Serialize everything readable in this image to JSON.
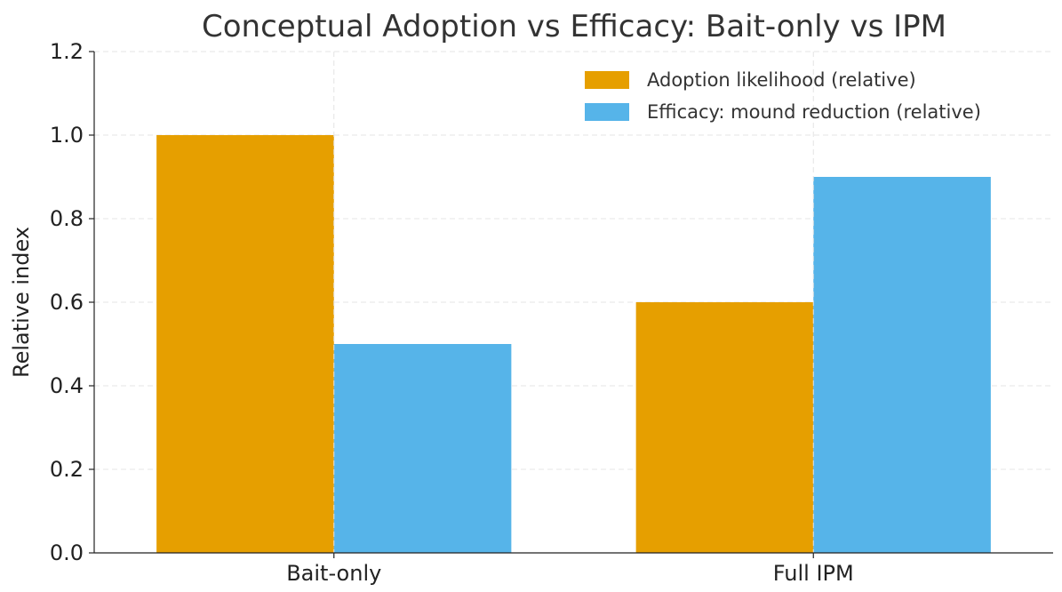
{
  "chart_data": {
    "type": "bar",
    "title": "Conceptual Adoption vs Efficacy: Bait-only vs IPM",
    "xlabel": "",
    "ylabel": "Relative index",
    "categories": [
      "Bait-only",
      "Full IPM"
    ],
    "series": [
      {
        "name": "Adoption likelihood (relative)",
        "values": [
          1.0,
          0.6
        ],
        "color": "#E69F00"
      },
      {
        "name": "Efficacy: mound reduction (relative)",
        "values": [
          0.5,
          0.9
        ],
        "color": "#56B4E9"
      }
    ],
    "ylim": [
      0,
      1.2
    ],
    "yticks": [
      "0.0",
      "0.2",
      "0.4",
      "0.6",
      "0.8",
      "1.0",
      "1.2"
    ],
    "grid": true,
    "legend_position": "top-right"
  }
}
